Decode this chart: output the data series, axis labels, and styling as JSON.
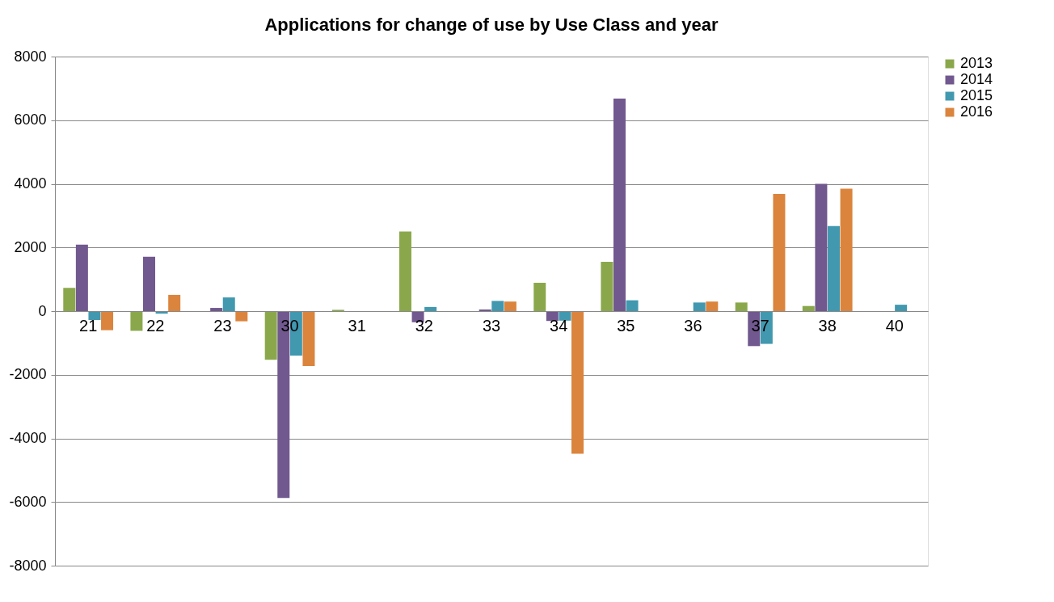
{
  "chart_data": {
    "type": "bar",
    "title": "Applications for change of use by Use Class and year",
    "categories": [
      "21",
      "22",
      "23",
      "30",
      "31",
      "32",
      "33",
      "34",
      "35",
      "36",
      "37",
      "38",
      "40"
    ],
    "series": [
      {
        "name": "2013",
        "color": "#8aa84b",
        "values": [
          730,
          -620,
          0,
          -1530,
          40,
          2500,
          0,
          890,
          1550,
          0,
          270,
          160,
          0
        ]
      },
      {
        "name": "2014",
        "color": "#71588f",
        "values": [
          2090,
          1710,
          100,
          -5870,
          0,
          -350,
          50,
          -310,
          6680,
          0,
          -1100,
          4000,
          0
        ]
      },
      {
        "name": "2015",
        "color": "#4198af",
        "values": [
          -280,
          -80,
          430,
          -1400,
          0,
          130,
          320,
          -300,
          340,
          270,
          -1030,
          2670,
          200
        ]
      },
      {
        "name": "2016",
        "color": "#db843d",
        "values": [
          -600,
          510,
          -320,
          -1730,
          0,
          0,
          300,
          -4480,
          0,
          300,
          3680,
          3850,
          0
        ]
      }
    ],
    "ylim": [
      -8000,
      8000
    ],
    "yticks": [
      -8000,
      -6000,
      -4000,
      -2000,
      0,
      2000,
      4000,
      6000,
      8000
    ],
    "grid": "y",
    "legend": "right"
  }
}
